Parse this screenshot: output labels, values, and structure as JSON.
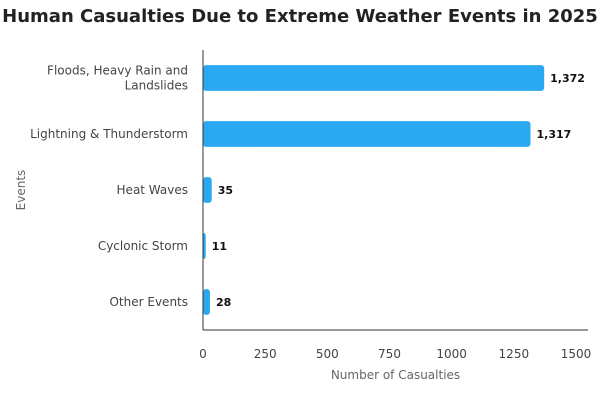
{
  "chart_data": {
    "type": "bar",
    "orientation": "horizontal",
    "title": "Human Casualties Due to Extreme Weather Events in 2025",
    "xlabel": "Number of Casualties",
    "ylabel": "Events",
    "categories": [
      [
        "Floods, Heavy Rain and",
        "Landslides"
      ],
      [
        "Lightning & Thunderstorm"
      ],
      [
        "Heat Waves"
      ],
      [
        "Cyclonic Storm"
      ],
      [
        "Other Events"
      ]
    ],
    "values": [
      1372,
      1317,
      35,
      11,
      28
    ],
    "value_labels": [
      "1,372",
      "1,317",
      "35",
      "11",
      "28"
    ],
    "xlim": [
      0,
      1500
    ],
    "xticks": [
      0,
      250,
      500,
      750,
      1000,
      1250,
      1500
    ],
    "bar_color": "#2BA9F0",
    "grid": false
  }
}
